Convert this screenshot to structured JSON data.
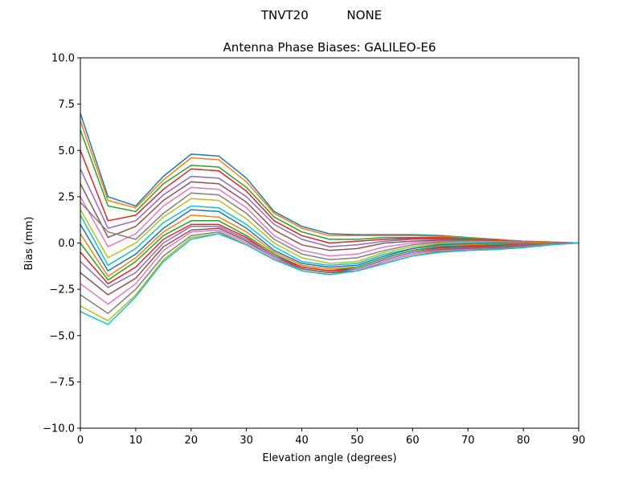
{
  "suptitle": "TNVT20          NONE",
  "chart_data": {
    "type": "line",
    "title": "Antenna Phase Biases: GALILEO-E6",
    "xlabel": "Elevation angle (degrees)",
    "ylabel": "Bias (mm)",
    "xlim": [
      0,
      90
    ],
    "ylim": [
      -10,
      10
    ],
    "grid": false,
    "legend": "none",
    "x": [
      0,
      5,
      10,
      15,
      20,
      25,
      30,
      35,
      40,
      45,
      50,
      55,
      60,
      65,
      70,
      75,
      80,
      85,
      90
    ],
    "xticks": [
      "0",
      "10",
      "20",
      "30",
      "40",
      "50",
      "60",
      "70",
      "80",
      "90"
    ],
    "xtick_values": [
      0,
      10,
      20,
      30,
      40,
      50,
      60,
      70,
      80,
      90
    ],
    "yticks": [
      "10.0",
      "7.5",
      "5.0",
      "2.5",
      "0.0",
      "−2.5",
      "−5.0",
      "−7.5",
      "−10.0"
    ],
    "ytick_values": [
      10,
      7.5,
      5,
      2.5,
      0,
      -2.5,
      -5,
      -7.5,
      -10
    ],
    "colors": [
      "#1f77b4",
      "#ff7f0e",
      "#2ca02c",
      "#d62728",
      "#9467bd",
      "#8c564b",
      "#e377c2",
      "#7f7f7f",
      "#bcbd22",
      "#17becf"
    ],
    "series": [
      {
        "values": [
          7.0,
          2.5,
          2.0,
          3.6,
          4.8,
          4.7,
          3.5,
          1.7,
          0.9,
          0.5,
          0.45,
          0.45,
          0.45,
          0.4,
          0.3,
          0.2,
          0.1,
          0.05,
          0
        ]
      },
      {
        "values": [
          6.6,
          2.3,
          1.9,
          3.4,
          4.6,
          4.5,
          3.3,
          1.6,
          0.8,
          0.4,
          0.4,
          0.4,
          0.4,
          0.35,
          0.28,
          0.18,
          0.1,
          0.05,
          0
        ]
      },
      {
        "values": [
          6.1,
          2.0,
          1.7,
          3.2,
          4.2,
          4.1,
          3.0,
          1.4,
          0.6,
          0.2,
          0.2,
          0.3,
          0.3,
          0.3,
          0.25,
          0.15,
          0.08,
          0.04,
          0
        ]
      },
      {
        "values": [
          5.0,
          1.2,
          1.5,
          2.9,
          4.0,
          3.9,
          2.8,
          1.2,
          0.4,
          0.0,
          0.1,
          0.2,
          0.25,
          0.25,
          0.2,
          0.15,
          0.08,
          0.04,
          0
        ]
      },
      {
        "values": [
          4.0,
          0.8,
          1.2,
          2.6,
          3.6,
          3.5,
          2.5,
          1.0,
          0.2,
          -0.2,
          -0.1,
          0.1,
          0.2,
          0.2,
          0.18,
          0.12,
          0.07,
          0.03,
          0
        ]
      },
      {
        "values": [
          3.2,
          0.3,
          0.9,
          2.3,
          3.3,
          3.2,
          2.2,
          0.7,
          -0.1,
          -0.4,
          -0.3,
          0.0,
          0.1,
          0.15,
          0.15,
          0.1,
          0.06,
          0.03,
          0
        ]
      },
      {
        "values": [
          2.5,
          -0.2,
          0.5,
          2.0,
          3.0,
          2.9,
          1.9,
          0.4,
          -0.4,
          -0.7,
          -0.6,
          -0.2,
          0.0,
          0.1,
          0.1,
          0.08,
          0.05,
          0.02,
          0
        ]
      },
      {
        "values": [
          2.2,
          0.6,
          0.2,
          1.6,
          2.7,
          2.6,
          1.6,
          0.2,
          -0.6,
          -0.9,
          -0.8,
          -0.4,
          -0.1,
          0.05,
          0.08,
          0.06,
          0.04,
          0.02,
          0
        ]
      },
      {
        "values": [
          1.8,
          -0.8,
          0.0,
          1.4,
          2.4,
          2.3,
          1.3,
          0.0,
          -0.8,
          -1.1,
          -1.0,
          -0.5,
          -0.2,
          0.0,
          0.05,
          0.05,
          0.03,
          0.01,
          0
        ]
      },
      {
        "values": [
          1.5,
          -1.2,
          -0.3,
          1.1,
          2.0,
          1.9,
          1.0,
          -0.2,
          -1.0,
          -1.2,
          -1.1,
          -0.6,
          -0.3,
          -0.05,
          0.0,
          0.02,
          0.02,
          0.01,
          0
        ]
      },
      {
        "values": [
          1.0,
          -1.5,
          -0.6,
          0.8,
          1.8,
          1.7,
          0.8,
          -0.4,
          -1.1,
          -1.3,
          -1.2,
          -0.7,
          -0.3,
          -0.1,
          -0.05,
          0.0,
          0.0,
          0.0,
          0
        ]
      },
      {
        "values": [
          0.5,
          -1.8,
          -0.8,
          0.6,
          1.5,
          1.4,
          0.6,
          -0.5,
          -1.2,
          -1.4,
          -1.3,
          -0.8,
          -0.4,
          -0.15,
          -0.1,
          -0.05,
          -0.02,
          0.0,
          0
        ]
      },
      {
        "values": [
          0.0,
          -2.0,
          -1.0,
          0.4,
          1.2,
          1.2,
          0.4,
          -0.6,
          -1.3,
          -1.5,
          -1.3,
          -0.8,
          -0.4,
          -0.2,
          -0.15,
          -0.1,
          -0.05,
          -0.02,
          0
        ]
      },
      {
        "values": [
          -0.5,
          -2.2,
          -1.3,
          0.2,
          1.0,
          1.0,
          0.3,
          -0.7,
          -1.3,
          -1.5,
          -1.4,
          -0.9,
          -0.5,
          -0.25,
          -0.2,
          -0.15,
          -0.08,
          -0.03,
          0
        ]
      },
      {
        "values": [
          -1.0,
          -2.4,
          -1.6,
          0.0,
          0.9,
          0.9,
          0.2,
          -0.7,
          -1.4,
          -1.6,
          -1.4,
          -0.9,
          -0.5,
          -0.3,
          -0.25,
          -0.2,
          -0.1,
          -0.04,
          0
        ]
      },
      {
        "values": [
          -1.6,
          -2.8,
          -1.9,
          -0.2,
          0.7,
          0.8,
          0.1,
          -0.8,
          -1.4,
          -1.6,
          -1.5,
          -1.0,
          -0.6,
          -0.35,
          -0.3,
          -0.25,
          -0.15,
          -0.05,
          0
        ]
      },
      {
        "values": [
          -2.2,
          -3.3,
          -2.2,
          -0.4,
          0.6,
          0.7,
          0.0,
          -0.8,
          -1.5,
          -1.7,
          -1.5,
          -1.0,
          -0.6,
          -0.4,
          -0.35,
          -0.3,
          -0.2,
          -0.06,
          0
        ]
      },
      {
        "values": [
          -2.8,
          -3.8,
          -2.5,
          -0.7,
          0.4,
          0.6,
          -0.1,
          -0.9,
          -1.5,
          -1.7,
          -1.5,
          -1.1,
          -0.7,
          -0.45,
          -0.4,
          -0.32,
          -0.22,
          -0.08,
          0
        ]
      },
      {
        "values": [
          -3.4,
          -4.2,
          -2.8,
          -0.9,
          0.3,
          0.5,
          -0.1,
          -0.9,
          -1.5,
          -1.7,
          -1.5,
          -1.1,
          -0.7,
          -0.5,
          -0.4,
          -0.35,
          -0.25,
          -0.1,
          0
        ]
      },
      {
        "values": [
          -3.7,
          -4.4,
          -2.9,
          -1.0,
          0.2,
          0.5,
          -0.1,
          -0.9,
          -1.5,
          -1.7,
          -1.5,
          -1.1,
          -0.7,
          -0.5,
          -0.4,
          -0.35,
          -0.25,
          -0.1,
          0
        ]
      }
    ]
  }
}
